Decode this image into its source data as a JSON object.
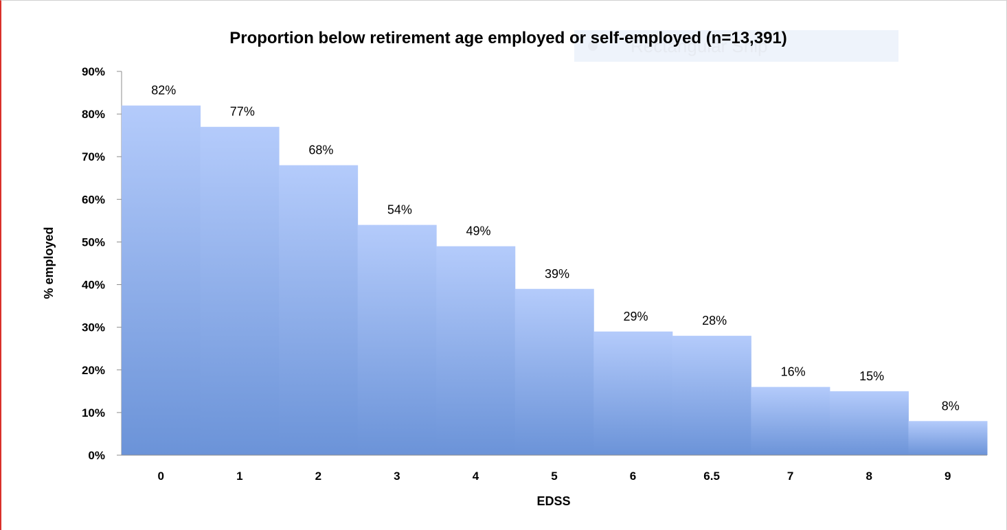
{
  "background_artifact": {
    "text": "Rectangular Snip"
  },
  "chart_data": {
    "type": "bar",
    "title": "Proportion below retirement age employed or self-employed (n=13,391)",
    "xlabel": "EDSS",
    "ylabel": "% employed",
    "categories": [
      "0",
      "1",
      "2",
      "3",
      "4",
      "5",
      "6",
      "6.5",
      "7",
      "8",
      "9"
    ],
    "values": [
      82,
      77,
      68,
      54,
      49,
      39,
      29,
      28,
      16,
      15,
      8
    ],
    "value_labels": [
      "82%",
      "77%",
      "68%",
      "54%",
      "49%",
      "39%",
      "29%",
      "28%",
      "16%",
      "15%",
      "8%"
    ],
    "ylim": [
      0,
      90
    ],
    "yticks": [
      0,
      10,
      20,
      30,
      40,
      50,
      60,
      70,
      80,
      90
    ],
    "ytick_labels": [
      "0%",
      "10%",
      "20%",
      "30%",
      "40%",
      "50%",
      "60%",
      "70%",
      "80%",
      "90%"
    ],
    "grid": false,
    "legend": "none",
    "colors": {
      "bar_top": "#b4cbfb",
      "bar_bottom": "#6b93d8",
      "axis": "#8c8c8c"
    }
  }
}
